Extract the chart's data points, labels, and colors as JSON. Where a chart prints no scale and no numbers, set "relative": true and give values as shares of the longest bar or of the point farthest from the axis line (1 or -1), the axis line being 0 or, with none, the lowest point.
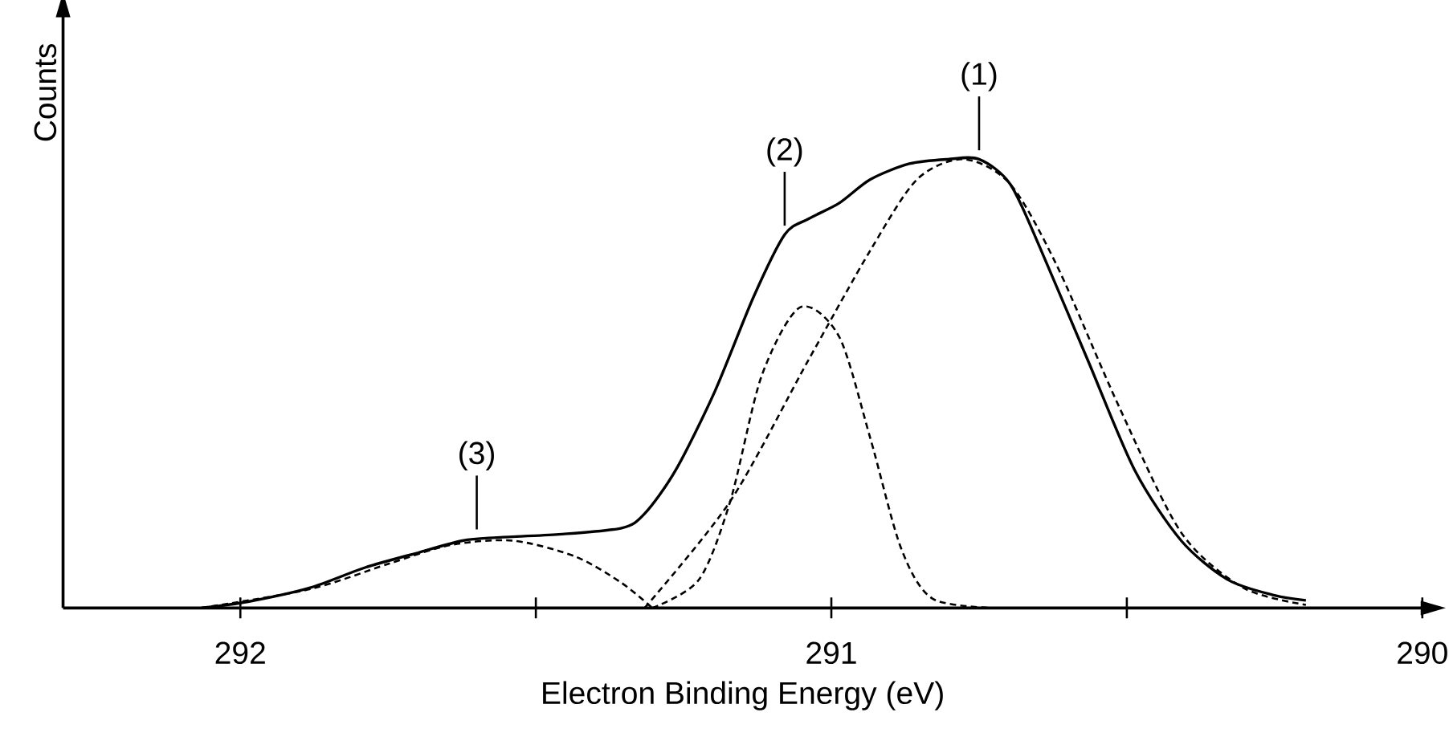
{
  "chart_data": {
    "type": "line",
    "relative": true,
    "xlabel": "Electron Binding Energy (eV)",
    "ylabel": "Counts",
    "xlim": [
      292.3,
      290
    ],
    "xticks": [
      292,
      {
        "value": 291.5,
        "label": null
      },
      291,
      {
        "value": 290.5,
        "label": null
      },
      290
    ],
    "series": [
      {
        "color": "#000000",
        "line_style": "solid",
        "x": [
          292.066,
          291.987,
          291.882,
          291.789,
          291.697,
          291.624,
          291.566,
          291.461,
          291.355,
          291.316,
          291.263,
          291.197,
          291.132,
          291.079,
          291.039,
          290.987,
          290.934,
          290.868,
          290.803,
          290.75,
          290.697,
          290.645,
          290.566,
          290.487,
          290.408,
          290.329,
          290.25,
          290.197
        ],
        "values": [
          0,
          0.014,
          0.045,
          0.09,
          0.124,
          0.15,
          0.157,
          0.164,
          0.178,
          0.21,
          0.308,
          0.483,
          0.692,
          0.832,
          0.867,
          0.902,
          0.955,
          0.99,
          1.0,
          1.0,
          0.944,
          0.797,
          0.552,
          0.308,
          0.15,
          0.063,
          0.028,
          0.017
        ]
      },
      {
        "color": "#000000",
        "line_style": "dashed",
        "x": [
          291.316,
          291.171,
          291.039,
          290.934,
          290.855,
          290.776,
          290.697,
          290.618,
          290.513,
          290.408,
          290.303,
          290.197
        ],
        "values": [
          0,
          0.238,
          0.552,
          0.797,
          0.955,
          1.0,
          0.944,
          0.762,
          0.448,
          0.168,
          0.045,
          0.007
        ]
      },
      {
        "color": "#000000",
        "line_style": "dashed",
        "x": [
          291.303,
          291.224,
          291.171,
          291.118,
          291.053,
          290.987,
          290.934,
          290.882,
          290.829,
          290.724
        ],
        "values": [
          0,
          0.063,
          0.238,
          0.517,
          0.67,
          0.605,
          0.378,
          0.133,
          0.021,
          0
        ]
      },
      {
        "color": "#000000",
        "line_style": "dashed",
        "x": [
          292.066,
          291.882,
          291.75,
          291.645,
          291.539,
          291.434,
          291.355,
          291.303
        ],
        "values": [
          0,
          0.042,
          0.098,
          0.14,
          0.15,
          0.115,
          0.056,
          0
        ]
      }
    ],
    "annotations": [
      {
        "text": "(1)",
        "x": 290.75,
        "y": 1.0
      },
      {
        "text": "(2)",
        "x": 291.079,
        "y": 0.832
      },
      {
        "text": "(3)",
        "x": 291.6,
        "y": 0.155
      }
    ]
  }
}
